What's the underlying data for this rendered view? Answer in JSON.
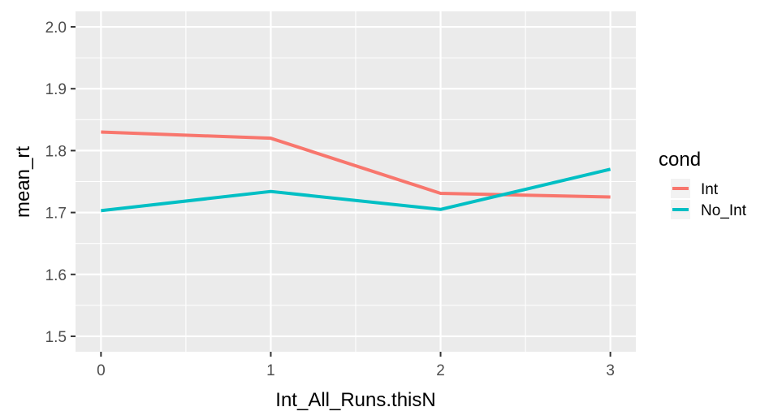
{
  "chart_data": {
    "type": "line",
    "xlabel": "Int_All_Runs.thisN",
    "ylabel": "mean_rt",
    "x": [
      0,
      1,
      2,
      3
    ],
    "xlim": [
      -0.15,
      3.15
    ],
    "ylim": [
      1.475,
      2.025
    ],
    "x_ticks": [
      "0",
      "1",
      "2",
      "3"
    ],
    "y_ticks": [
      1.5,
      1.6,
      1.7,
      1.8,
      1.9,
      2.0
    ],
    "y_tick_labels": [
      "1.5",
      "1.6",
      "1.7",
      "1.8",
      "1.9",
      "2.0"
    ],
    "grid": true,
    "legend": {
      "title": "cond",
      "placement": "right"
    },
    "series": [
      {
        "name": "Int",
        "color": "#F8766D",
        "values": [
          1.83,
          1.82,
          1.731,
          1.725
        ]
      },
      {
        "name": "No_Int",
        "color": "#00BFC4",
        "values": [
          1.703,
          1.734,
          1.705,
          1.77
        ]
      }
    ]
  }
}
